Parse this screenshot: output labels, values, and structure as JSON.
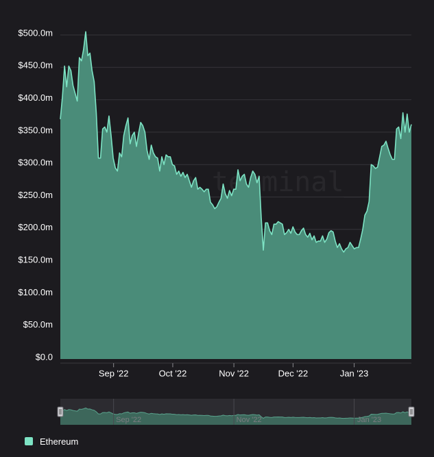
{
  "watermark": "token terminal_",
  "colors": {
    "background": "#1c1b1f",
    "line": "#7de3c4",
    "area": "#4a8c79",
    "grid": "#36353a"
  },
  "legend": {
    "items": [
      {
        "name": "Ethereum",
        "color": "#7de3c4"
      }
    ]
  },
  "chart_data": {
    "type": "area",
    "title": "",
    "xlabel": "",
    "ylabel": "",
    "ylim": [
      0,
      500
    ],
    "y_ticks": [
      0,
      50,
      100,
      150,
      200,
      250,
      300,
      350,
      400,
      450,
      500
    ],
    "y_tick_labels": [
      "$0.0",
      "$50.0m",
      "$100.0m",
      "$150.0m",
      "$200.0m",
      "$250.0m",
      "$300.0m",
      "$350.0m",
      "$400.0m",
      "$450.0m",
      "$500.0m"
    ],
    "x_ticks": [
      "2022-09-01",
      "2022-10-01",
      "2022-11-01",
      "2022-12-01",
      "2023-01-01"
    ],
    "x_tick_labels": [
      "Sep '22",
      "Oct '22",
      "Nov '22",
      "Dec '22",
      "Jan '23"
    ],
    "grid": true,
    "legend_position": "bottom-left",
    "navigator": {
      "tick_labels": [
        "Sep '22",
        "Nov '22",
        "Jan '23"
      ]
    },
    "series": [
      {
        "name": "Ethereum",
        "x_start": "2022-08-05",
        "x_end": "2023-01-30",
        "values": [
          370,
          405,
          452,
          420,
          452,
          445,
          422,
          410,
          398,
          465,
          460,
          478,
          505,
          468,
          472,
          445,
          428,
          380,
          310,
          310,
          355,
          358,
          350,
          375,
          345,
          310,
          295,
          290,
          318,
          312,
          345,
          360,
          372,
          332,
          345,
          350,
          328,
          348,
          365,
          360,
          350,
          322,
          308,
          330,
          318,
          312,
          310,
          290,
          312,
          300,
          315,
          312,
          312,
          300,
          298,
          285,
          290,
          282,
          288,
          280,
          285,
          275,
          265,
          275,
          280,
          262,
          265,
          262,
          258,
          262,
          262,
          242,
          238,
          232,
          235,
          242,
          248,
          270,
          255,
          248,
          260,
          252,
          262,
          262,
          292,
          275,
          282,
          285,
          270,
          265,
          280,
          290,
          285,
          272,
          282,
          218,
          168,
          210,
          210,
          198,
          192,
          208,
          208,
          212,
          210,
          208,
          192,
          195,
          200,
          194,
          204,
          196,
          192,
          192,
          198,
          202,
          192,
          188,
          194,
          184,
          190,
          180,
          182,
          182,
          190,
          180,
          185,
          195,
          198,
          196,
          182,
          172,
          178,
          170,
          165,
          170,
          172,
          180,
          175,
          170,
          172,
          172,
          185,
          200,
          222,
          228,
          243,
          300,
          298,
          294,
          296,
          312,
          328,
          330,
          336,
          325,
          315,
          308,
          308,
          355,
          358,
          340,
          380,
          350,
          378,
          350,
          362
        ]
      }
    ]
  }
}
